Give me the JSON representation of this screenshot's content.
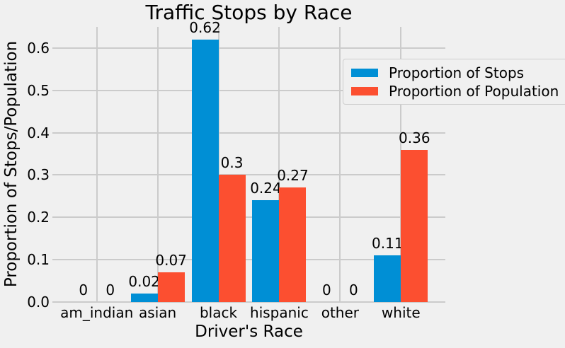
{
  "figure": {
    "background_color": "#f0f0f0",
    "grid_color": "#cbcbcb",
    "text_color": "#000000",
    "legend_border_color": "#cdcdcd"
  },
  "chart_data": {
    "type": "bar",
    "title": "Traffic Stops by Race",
    "xlabel": "Driver's Race",
    "ylabel": "Proportion of Stops/Population",
    "categories": [
      "am_indian",
      "asian",
      "black",
      "hispanic",
      "other",
      "white"
    ],
    "series": [
      {
        "name": "Proportion of Stops",
        "color": "#008fd5",
        "values": [
          0,
          0.02,
          0.62,
          0.24,
          0,
          0.11
        ],
        "bar_labels": [
          "0",
          "0.02",
          "0.62",
          "0.24",
          "0",
          "0.11"
        ]
      },
      {
        "name": "Proportion of Population",
        "color": "#fc4f30",
        "values": [
          0,
          0.07,
          0.3,
          0.27,
          0,
          0.36
        ],
        "bar_labels": [
          "0",
          "0.07",
          "0.3",
          "0.27",
          "0",
          "0.36"
        ]
      }
    ],
    "ytick_labels": [
      "0.0",
      "0.1",
      "0.2",
      "0.3",
      "0.4",
      "0.5",
      "0.6"
    ],
    "ylim": [
      0,
      0.65
    ],
    "grid": true,
    "legend_position": "upper right"
  }
}
